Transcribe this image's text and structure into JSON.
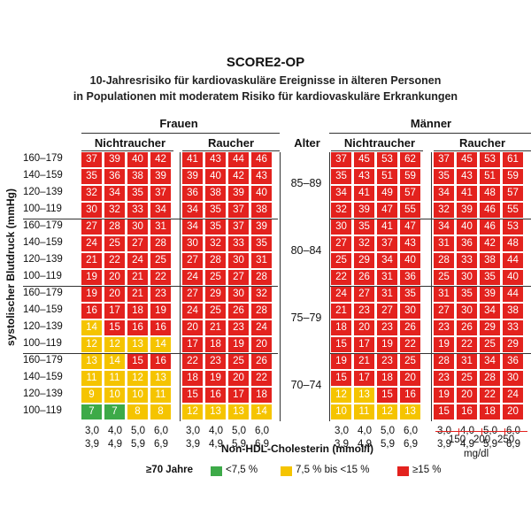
{
  "title": "SCORE2-OP",
  "subtitle1": "10-Jahresrisiko für kardiovaskuläre Ereignisse in älteren Personen",
  "subtitle2": "in Populationen mit moderatem Risiko für kardiovaskuläre Erkrankungen",
  "women_label": "Frauen",
  "men_label": "Männer",
  "nonsmoker_label": "Nichtraucher",
  "smoker_label": "Raucher",
  "age_header": "Alter",
  "y_axis_label": "systolischer Blutdruck (mmHg)",
  "bp_rows": [
    "160–179",
    "140–159",
    "120–139",
    "100–119"
  ],
  "age_groups": [
    "85–89",
    "80–84",
    "75–79",
    "70–74"
  ],
  "chol_top": [
    "3,0",
    "4,0",
    "5,0",
    "6,0"
  ],
  "chol_bottom": [
    "3,9",
    "4,9",
    "5,9",
    "6,9"
  ],
  "x_axis_label": "Non-HDL-Cholesterin (mmol/l)",
  "mgdl_ticks": [
    "150",
    "200",
    "250"
  ],
  "mgdl_unit": "mg/dl",
  "legend": {
    "age_note": "≥70 Jahre",
    "items": [
      {
        "label": "<7,5 %",
        "color": "#3daa48"
      },
      {
        "label": "7,5 % bis <15 %",
        "color": "#f5c400"
      },
      {
        "label": "≥15 %",
        "color": "#e3221e"
      }
    ]
  },
  "colors": {
    "green": "#3daa48",
    "yellow": "#f5c400",
    "red": "#e3221e"
  },
  "tables": {
    "women_nonsmoker": [
      [
        [
          37,
          39,
          40,
          42
        ],
        [
          35,
          36,
          38,
          39
        ],
        [
          32,
          34,
          35,
          37
        ],
        [
          30,
          32,
          33,
          34
        ]
      ],
      [
        [
          27,
          28,
          30,
          31
        ],
        [
          24,
          25,
          27,
          28
        ],
        [
          21,
          22,
          24,
          25
        ],
        [
          19,
          20,
          21,
          22
        ]
      ],
      [
        [
          19,
          20,
          21,
          23
        ],
        [
          16,
          17,
          18,
          19
        ],
        [
          14,
          15,
          16,
          16
        ],
        [
          12,
          12,
          13,
          14
        ]
      ],
      [
        [
          13,
          14,
          15,
          16
        ],
        [
          11,
          11,
          12,
          13
        ],
        [
          9,
          10,
          10,
          11
        ],
        [
          7,
          7,
          8,
          8
        ]
      ]
    ],
    "women_smoker": [
      [
        [
          41,
          43,
          44,
          46
        ],
        [
          39,
          40,
          42,
          43
        ],
        [
          36,
          38,
          39,
          40
        ],
        [
          34,
          35,
          37,
          38
        ]
      ],
      [
        [
          34,
          35,
          37,
          39
        ],
        [
          30,
          32,
          33,
          35
        ],
        [
          27,
          28,
          30,
          31
        ],
        [
          24,
          25,
          27,
          28
        ]
      ],
      [
        [
          27,
          29,
          30,
          32
        ],
        [
          24,
          25,
          26,
          28
        ],
        [
          20,
          21,
          23,
          24
        ],
        [
          17,
          18,
          19,
          20
        ]
      ],
      [
        [
          22,
          23,
          25,
          26
        ],
        [
          18,
          19,
          20,
          22
        ],
        [
          15,
          16,
          17,
          18
        ],
        [
          12,
          13,
          13,
          14
        ]
      ]
    ],
    "men_nonsmoker": [
      [
        [
          37,
          45,
          53,
          62
        ],
        [
          35,
          43,
          51,
          59
        ],
        [
          34,
          41,
          49,
          57
        ],
        [
          32,
          39,
          47,
          55
        ]
      ],
      [
        [
          30,
          35,
          41,
          47
        ],
        [
          27,
          32,
          37,
          43
        ],
        [
          25,
          29,
          34,
          40
        ],
        [
          22,
          26,
          31,
          36
        ]
      ],
      [
        [
          24,
          27,
          31,
          35
        ],
        [
          21,
          23,
          27,
          30
        ],
        [
          18,
          20,
          23,
          26
        ],
        [
          15,
          17,
          19,
          22
        ]
      ],
      [
        [
          19,
          21,
          23,
          25
        ],
        [
          15,
          17,
          18,
          20
        ],
        [
          12,
          13,
          15,
          16
        ],
        [
          10,
          11,
          12,
          13
        ]
      ]
    ],
    "men_smoker": [
      [
        [
          37,
          45,
          53,
          61
        ],
        [
          35,
          43,
          51,
          59
        ],
        [
          34,
          41,
          48,
          57
        ],
        [
          32,
          39,
          46,
          55
        ]
      ],
      [
        [
          34,
          40,
          46,
          53
        ],
        [
          31,
          36,
          42,
          48
        ],
        [
          28,
          33,
          38,
          44
        ],
        [
          25,
          30,
          35,
          40
        ]
      ],
      [
        [
          31,
          35,
          39,
          44
        ],
        [
          27,
          30,
          34,
          38
        ],
        [
          23,
          26,
          29,
          33
        ],
        [
          19,
          22,
          25,
          29
        ]
      ],
      [
        [
          28,
          31,
          34,
          36
        ],
        [
          23,
          25,
          28,
          30
        ],
        [
          19,
          20,
          22,
          24
        ],
        [
          15,
          16,
          18,
          20
        ]
      ]
    ],
    "women_nonsmoker_colors": [
      [
        [
          "r",
          "r",
          "r",
          "r"
        ],
        [
          "r",
          "r",
          "r",
          "r"
        ],
        [
          "r",
          "r",
          "r",
          "r"
        ],
        [
          "r",
          "r",
          "r",
          "r"
        ]
      ],
      [
        [
          "r",
          "r",
          "r",
          "r"
        ],
        [
          "r",
          "r",
          "r",
          "r"
        ],
        [
          "r",
          "r",
          "r",
          "r"
        ],
        [
          "r",
          "r",
          "r",
          "r"
        ]
      ],
      [
        [
          "r",
          "r",
          "r",
          "r"
        ],
        [
          "r",
          "r",
          "r",
          "r"
        ],
        [
          "y",
          "r",
          "r",
          "r"
        ],
        [
          "y",
          "y",
          "y",
          "y"
        ]
      ],
      [
        [
          "y",
          "y",
          "r",
          "r"
        ],
        [
          "y",
          "y",
          "y",
          "y"
        ],
        [
          "y",
          "y",
          "y",
          "y"
        ],
        [
          "g",
          "g",
          "y",
          "y"
        ]
      ]
    ],
    "women_smoker_colors": [
      [
        [
          "r",
          "r",
          "r",
          "r"
        ],
        [
          "r",
          "r",
          "r",
          "r"
        ],
        [
          "r",
          "r",
          "r",
          "r"
        ],
        [
          "r",
          "r",
          "r",
          "r"
        ]
      ],
      [
        [
          "r",
          "r",
          "r",
          "r"
        ],
        [
          "r",
          "r",
          "r",
          "r"
        ],
        [
          "r",
          "r",
          "r",
          "r"
        ],
        [
          "r",
          "r",
          "r",
          "r"
        ]
      ],
      [
        [
          "r",
          "r",
          "r",
          "r"
        ],
        [
          "r",
          "r",
          "r",
          "r"
        ],
        [
          "r",
          "r",
          "r",
          "r"
        ],
        [
          "r",
          "r",
          "r",
          "r"
        ]
      ],
      [
        [
          "r",
          "r",
          "r",
          "r"
        ],
        [
          "r",
          "r",
          "r",
          "r"
        ],
        [
          "r",
          "r",
          "r",
          "r"
        ],
        [
          "y",
          "y",
          "y",
          "y"
        ]
      ]
    ],
    "men_nonsmoker_colors": [
      [
        [
          "r",
          "r",
          "r",
          "r"
        ],
        [
          "r",
          "r",
          "r",
          "r"
        ],
        [
          "r",
          "r",
          "r",
          "r"
        ],
        [
          "r",
          "r",
          "r",
          "r"
        ]
      ],
      [
        [
          "r",
          "r",
          "r",
          "r"
        ],
        [
          "r",
          "r",
          "r",
          "r"
        ],
        [
          "r",
          "r",
          "r",
          "r"
        ],
        [
          "r",
          "r",
          "r",
          "r"
        ]
      ],
      [
        [
          "r",
          "r",
          "r",
          "r"
        ],
        [
          "r",
          "r",
          "r",
          "r"
        ],
        [
          "r",
          "r",
          "r",
          "r"
        ],
        [
          "r",
          "r",
          "r",
          "r"
        ]
      ],
      [
        [
          "r",
          "r",
          "r",
          "r"
        ],
        [
          "r",
          "r",
          "r",
          "r"
        ],
        [
          "y",
          "y",
          "r",
          "r"
        ],
        [
          "y",
          "y",
          "y",
          "y"
        ]
      ]
    ],
    "men_smoker_colors": [
      [
        [
          "r",
          "r",
          "r",
          "r"
        ],
        [
          "r",
          "r",
          "r",
          "r"
        ],
        [
          "r",
          "r",
          "r",
          "r"
        ],
        [
          "r",
          "r",
          "r",
          "r"
        ]
      ],
      [
        [
          "r",
          "r",
          "r",
          "r"
        ],
        [
          "r",
          "r",
          "r",
          "r"
        ],
        [
          "r",
          "r",
          "r",
          "r"
        ],
        [
          "r",
          "r",
          "r",
          "r"
        ]
      ],
      [
        [
          "r",
          "r",
          "r",
          "r"
        ],
        [
          "r",
          "r",
          "r",
          "r"
        ],
        [
          "r",
          "r",
          "r",
          "r"
        ],
        [
          "r",
          "r",
          "r",
          "r"
        ]
      ],
      [
        [
          "r",
          "r",
          "r",
          "r"
        ],
        [
          "r",
          "r",
          "r",
          "r"
        ],
        [
          "r",
          "r",
          "r",
          "r"
        ],
        [
          "r",
          "r",
          "r",
          "r"
        ]
      ]
    ]
  }
}
